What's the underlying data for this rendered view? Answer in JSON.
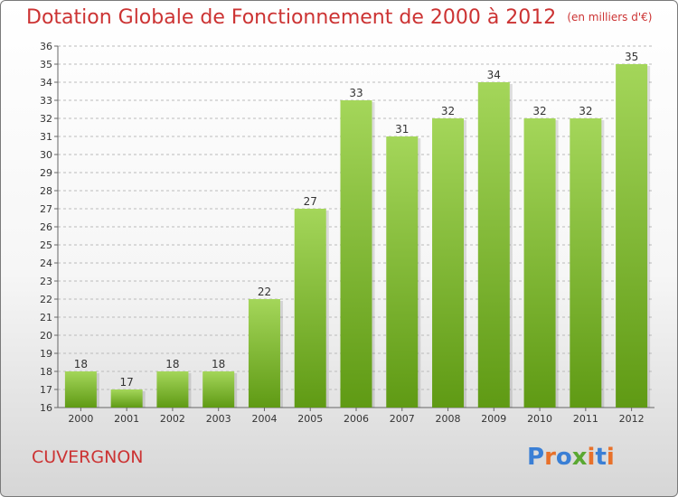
{
  "title": "Dotation Globale de Fonctionnement de 2000 à 2012",
  "subtitle": "(en milliers d'€)",
  "commune": "CUVERGNON",
  "logo": {
    "text": "Proxiti",
    "letters": [
      "P",
      "r",
      "o",
      "x",
      "i",
      "t",
      "i"
    ],
    "colors": [
      "#3a7fd5",
      "#e8712a",
      "#3a7fd5",
      "#5aa832",
      "#e8712a",
      "#3a7fd5",
      "#e8712a"
    ]
  },
  "colors": {
    "title": "#cc3333",
    "bar_light": "#a4d65a",
    "bar_dark": "#5f9a14",
    "grid": "#bbbbbb"
  },
  "chart_data": {
    "type": "bar",
    "categories": [
      "2000",
      "2001",
      "2002",
      "2003",
      "2004",
      "2005",
      "2006",
      "2007",
      "2008",
      "2009",
      "2010",
      "2011",
      "2012"
    ],
    "values": [
      18,
      17,
      18,
      18,
      22,
      27,
      33,
      31,
      32,
      34,
      32,
      32,
      35
    ],
    "ylim": [
      16,
      36
    ],
    "yticks": [
      "16",
      "17",
      "18",
      "19",
      "20",
      "21",
      "22",
      "23",
      "24",
      "25",
      "26",
      "27",
      "28",
      "29",
      "30",
      "31",
      "32",
      "33",
      "34",
      "35",
      "36"
    ],
    "grid": true,
    "data_labels": true
  }
}
